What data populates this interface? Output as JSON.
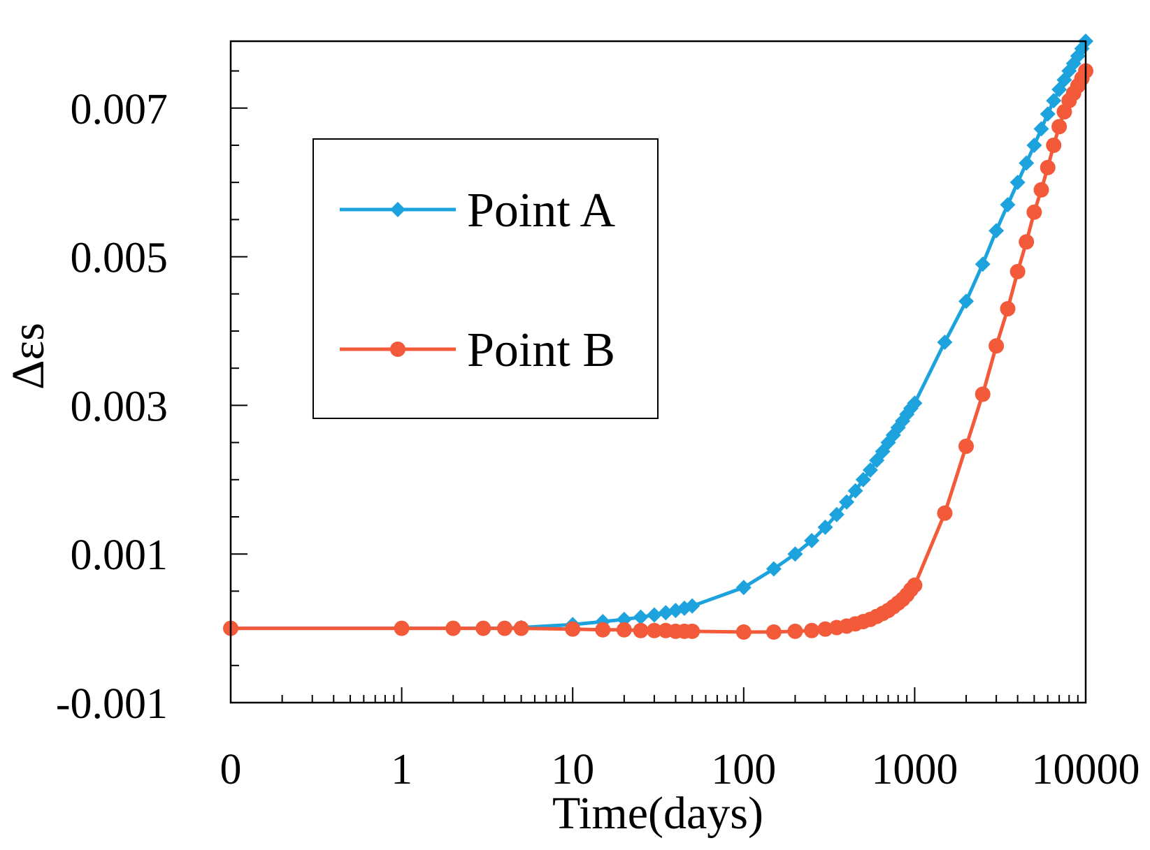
{
  "chart_data": {
    "type": "line",
    "title": "",
    "xlabel": "Time(days)",
    "ylabel": "Δεs",
    "xscale": "log",
    "x_tick_labels": [
      "0",
      "1",
      "10",
      "100",
      "1000",
      "10000"
    ],
    "y_tick_labels": [
      "-0.001",
      "0.001",
      "0.003",
      "0.005",
      "0.007"
    ],
    "ylim": [
      -0.001,
      0.0079
    ],
    "grid": false,
    "legend_position": "upper-left",
    "series": [
      {
        "name": "Point A",
        "color": "#1CA3DE",
        "marker": "diamond",
        "x": [
          0.1,
          1,
          2,
          3,
          4,
          5,
          10,
          15,
          20,
          25,
          30,
          35,
          40,
          45,
          50,
          100,
          150,
          200,
          250,
          300,
          350,
          400,
          450,
          500,
          550,
          600,
          650,
          700,
          750,
          800,
          850,
          900,
          950,
          1000,
          1500,
          2000,
          2500,
          3000,
          3500,
          4000,
          4500,
          5000,
          5500,
          6000,
          6500,
          7000,
          7500,
          8000,
          8500,
          9000,
          9500,
          10000
        ],
        "y": [
          0.0,
          0.0,
          0.0,
          0.0,
          0.0,
          1e-05,
          5e-05,
          9e-05,
          0.00012,
          0.00015,
          0.00018,
          0.00021,
          0.00024,
          0.00027,
          0.0003,
          0.00055,
          0.0008,
          0.001,
          0.00118,
          0.00136,
          0.00153,
          0.0017,
          0.00185,
          0.002,
          0.00213,
          0.00226,
          0.00238,
          0.0025,
          0.0026,
          0.0027,
          0.00279,
          0.00288,
          0.00296,
          0.00303,
          0.00385,
          0.0044,
          0.0049,
          0.00535,
          0.0057,
          0.006,
          0.00626,
          0.0065,
          0.00672,
          0.00692,
          0.0071,
          0.00725,
          0.00738,
          0.0075,
          0.0076,
          0.0077,
          0.0078,
          0.0079
        ]
      },
      {
        "name": "Point B",
        "color": "#F25A3A",
        "marker": "circle",
        "x": [
          0.1,
          1,
          2,
          3,
          4,
          5,
          10,
          15,
          20,
          25,
          30,
          35,
          40,
          45,
          50,
          100,
          150,
          200,
          250,
          300,
          350,
          400,
          450,
          500,
          550,
          600,
          650,
          700,
          750,
          800,
          850,
          900,
          950,
          1000,
          1500,
          2000,
          2500,
          3000,
          3500,
          4000,
          4500,
          5000,
          5500,
          6000,
          6500,
          7000,
          7500,
          8000,
          8500,
          9000,
          9500,
          10000
        ],
        "y": [
          0.0,
          0.0,
          0.0,
          0.0,
          0.0,
          0.0,
          -1e-05,
          -2e-05,
          -2e-05,
          -3e-05,
          -3e-05,
          -3e-05,
          -4e-05,
          -4e-05,
          -4e-05,
          -5e-05,
          -5e-05,
          -4e-05,
          -3e-05,
          -1e-05,
          1e-05,
          3e-05,
          6e-05,
          9e-05,
          0.00012,
          0.00016,
          0.0002,
          0.00024,
          0.00029,
          0.00034,
          0.00039,
          0.00045,
          0.00052,
          0.00058,
          0.00155,
          0.00245,
          0.00315,
          0.0038,
          0.0043,
          0.0048,
          0.0052,
          0.0056,
          0.0059,
          0.0062,
          0.0065,
          0.00675,
          0.00695,
          0.0071,
          0.0072,
          0.0073,
          0.0074,
          0.0075
        ]
      }
    ]
  }
}
